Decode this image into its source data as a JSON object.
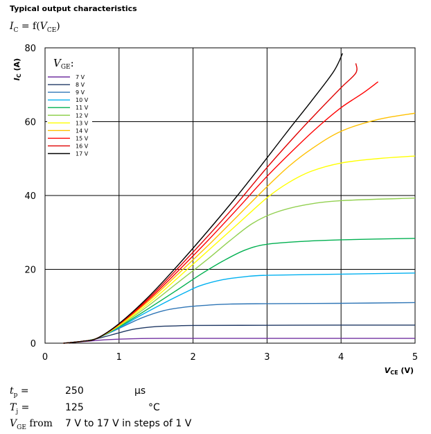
{
  "header": {
    "title": "Typical output characteristics",
    "formula_y": "I",
    "formula_y_sub": "C",
    "formula_mid": " = f(",
    "formula_x": "V",
    "formula_x_sub": "CE",
    "formula_end": ")"
  },
  "conditions": {
    "tp_symbol": "t",
    "tp_sub": "p",
    "tp_eq": " =",
    "tp_value": "250",
    "tp_unit": "µs",
    "tj_symbol": "T",
    "tj_sub": "j",
    "tj_eq": " =",
    "tj_value": "125",
    "tj_unit": "°C",
    "vge_symbol": "V",
    "vge_sub": "GE",
    "vge_from": " from",
    "vge_text": "7 V to 17 V in steps of 1 V"
  },
  "chart_data": {
    "type": "line",
    "title": "",
    "xlabel": "V_CE (V)",
    "ylabel": "I_C (A)",
    "xlim": [
      0,
      5
    ],
    "ylim": [
      0,
      80
    ],
    "xticks": [
      0,
      1,
      2,
      3,
      4,
      5
    ],
    "yticks": [
      0,
      20,
      40,
      60,
      80
    ],
    "grid": true,
    "legend_title": "V_GE:",
    "legend_position": "top-left",
    "series": [
      {
        "name": "7 V",
        "color": "#7030a0",
        "points": [
          [
            0.25,
            0
          ],
          [
            0.5,
            0.4
          ],
          [
            0.8,
            0.9
          ],
          [
            1.0,
            1.1
          ],
          [
            1.3,
            1.25
          ],
          [
            1.6,
            1.3
          ],
          [
            2,
            1.3
          ],
          [
            3,
            1.3
          ],
          [
            4,
            1.3
          ],
          [
            5,
            1.3
          ]
        ]
      },
      {
        "name": "8 V",
        "color": "#1f3864",
        "points": [
          [
            0.25,
            0
          ],
          [
            0.5,
            0.5
          ],
          [
            0.7,
            1.2
          ],
          [
            1.0,
            2.8
          ],
          [
            1.2,
            3.8
          ],
          [
            1.5,
            4.5
          ],
          [
            1.8,
            4.7
          ],
          [
            2,
            4.8
          ],
          [
            3,
            4.85
          ],
          [
            4,
            4.9
          ],
          [
            5,
            4.9
          ]
        ]
      },
      {
        "name": "9 V",
        "color": "#2e75b6",
        "points": [
          [
            0.25,
            0
          ],
          [
            0.5,
            0.5
          ],
          [
            0.7,
            1.3
          ],
          [
            1.0,
            4.0
          ],
          [
            1.3,
            6.8
          ],
          [
            1.6,
            8.8
          ],
          [
            1.9,
            9.8
          ],
          [
            2.2,
            10.3
          ],
          [
            2.5,
            10.6
          ],
          [
            3,
            10.7
          ],
          [
            4,
            10.8
          ],
          [
            5,
            11.0
          ]
        ]
      },
      {
        "name": "10 V",
        "color": "#00b0f0",
        "points": [
          [
            0.25,
            0
          ],
          [
            0.5,
            0.5
          ],
          [
            0.7,
            1.3
          ],
          [
            1.0,
            4.2
          ],
          [
            1.3,
            7.6
          ],
          [
            1.6,
            10.8
          ],
          [
            1.9,
            13.8
          ],
          [
            2.1,
            15.6
          ],
          [
            2.4,
            17.2
          ],
          [
            2.7,
            18.0
          ],
          [
            3,
            18.4
          ],
          [
            4,
            18.7
          ],
          [
            5,
            19.0
          ]
        ]
      },
      {
        "name": "11 V",
        "color": "#00b050",
        "points": [
          [
            0.25,
            0
          ],
          [
            0.5,
            0.5
          ],
          [
            0.7,
            1.3
          ],
          [
            1.0,
            4.4
          ],
          [
            1.4,
            9.4
          ],
          [
            1.8,
            14.6
          ],
          [
            2.1,
            18.6
          ],
          [
            2.4,
            22.2
          ],
          [
            2.7,
            25.2
          ],
          [
            3.0,
            26.8
          ],
          [
            3.5,
            27.6
          ],
          [
            4,
            28.0
          ],
          [
            5,
            28.4
          ]
        ]
      },
      {
        "name": "12 V",
        "color": "#92d050",
        "points": [
          [
            0.25,
            0
          ],
          [
            0.5,
            0.5
          ],
          [
            0.7,
            1.3
          ],
          [
            1.0,
            4.6
          ],
          [
            1.4,
            10.2
          ],
          [
            1.8,
            16.5
          ],
          [
            2.2,
            22.8
          ],
          [
            2.5,
            27.8
          ],
          [
            2.8,
            32.4
          ],
          [
            3.1,
            35.3
          ],
          [
            3.5,
            37.4
          ],
          [
            4,
            38.6
          ],
          [
            5,
            39.3
          ]
        ]
      },
      {
        "name": "13 V",
        "color": "#ffff00",
        "points": [
          [
            0.25,
            0
          ],
          [
            0.5,
            0.5
          ],
          [
            0.7,
            1.3
          ],
          [
            1.0,
            4.8
          ],
          [
            1.4,
            10.8
          ],
          [
            1.8,
            17.8
          ],
          [
            2.2,
            25.0
          ],
          [
            2.6,
            32.2
          ],
          [
            3.0,
            39.4
          ],
          [
            3.3,
            43.6
          ],
          [
            3.6,
            46.6
          ],
          [
            4.0,
            48.8
          ],
          [
            4.5,
            50.0
          ],
          [
            5,
            50.7
          ]
        ]
      },
      {
        "name": "14 V",
        "color": "#ffc000",
        "points": [
          [
            0.25,
            0
          ],
          [
            0.5,
            0.5
          ],
          [
            0.7,
            1.3
          ],
          [
            1.0,
            5.0
          ],
          [
            1.4,
            11.4
          ],
          [
            1.8,
            18.8
          ],
          [
            2.2,
            26.4
          ],
          [
            2.6,
            34.4
          ],
          [
            3.0,
            42.4
          ],
          [
            3.3,
            48.0
          ],
          [
            3.6,
            52.6
          ],
          [
            4.0,
            57.4
          ],
          [
            4.5,
            60.6
          ],
          [
            5,
            62.3
          ]
        ]
      },
      {
        "name": "15 V",
        "color": "#ff0000",
        "points": [
          [
            0.25,
            0
          ],
          [
            0.5,
            0.5
          ],
          [
            0.7,
            1.3
          ],
          [
            1.0,
            5.1
          ],
          [
            1.4,
            11.8
          ],
          [
            1.8,
            19.6
          ],
          [
            2.2,
            27.8
          ],
          [
            2.6,
            36.4
          ],
          [
            3.0,
            45.2
          ],
          [
            3.4,
            53.2
          ],
          [
            3.7,
            58.8
          ],
          [
            4.0,
            63.8
          ],
          [
            4.3,
            67.8
          ],
          [
            4.5,
            70.8
          ]
        ]
      },
      {
        "name": "16 V",
        "color": "#e00000",
        "points": [
          [
            0.25,
            0
          ],
          [
            0.5,
            0.5
          ],
          [
            0.7,
            1.3
          ],
          [
            1.0,
            5.2
          ],
          [
            1.4,
            12.2
          ],
          [
            1.8,
            20.4
          ],
          [
            2.2,
            29.0
          ],
          [
            2.6,
            38.0
          ],
          [
            3.0,
            47.6
          ],
          [
            3.4,
            56.6
          ],
          [
            3.7,
            63.0
          ],
          [
            4.0,
            69.2
          ],
          [
            4.2,
            73.2
          ],
          [
            4.2,
            75.8
          ]
        ]
      },
      {
        "name": "17 V",
        "color": "#000000",
        "points": [
          [
            0.25,
            0
          ],
          [
            0.5,
            0.5
          ],
          [
            0.7,
            1.3
          ],
          [
            1.0,
            5.3
          ],
          [
            1.4,
            12.6
          ],
          [
            1.8,
            21.2
          ],
          [
            2.2,
            30.4
          ],
          [
            2.6,
            40.0
          ],
          [
            3.0,
            50.2
          ],
          [
            3.3,
            58.0
          ],
          [
            3.6,
            65.6
          ],
          [
            3.9,
            73.6
          ],
          [
            4.02,
            78.5
          ]
        ]
      }
    ]
  }
}
